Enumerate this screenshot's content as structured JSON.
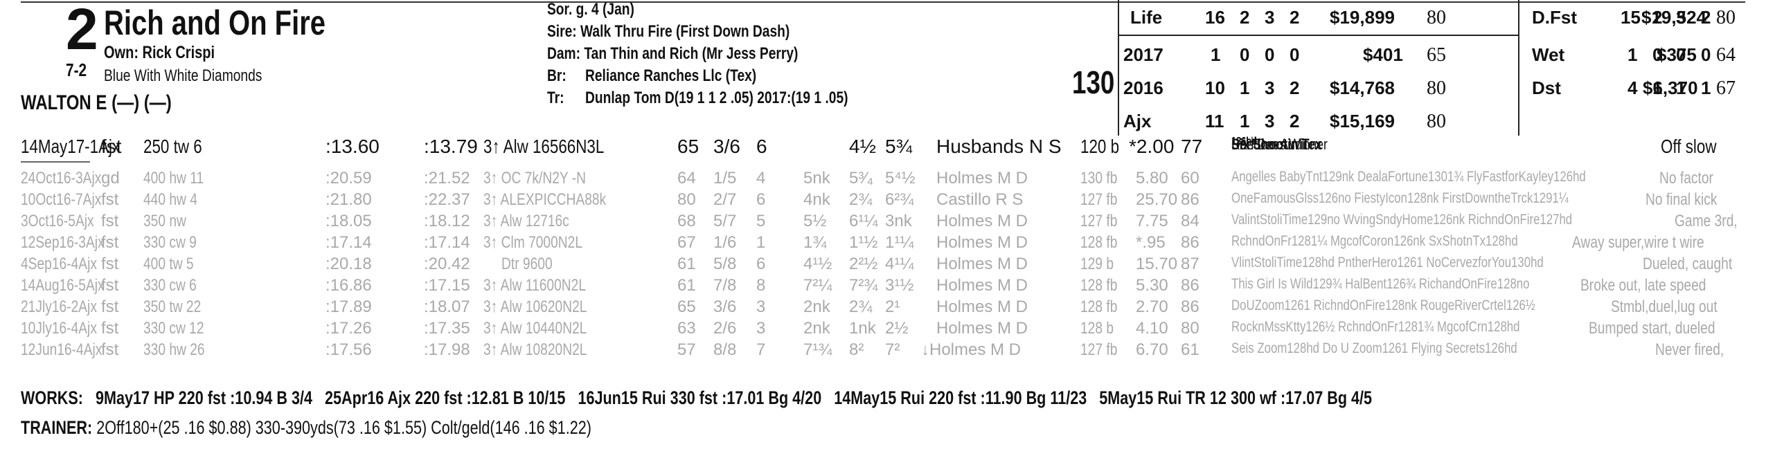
{
  "header": {
    "post_position": "2",
    "horse_name": "Rich and On Fire",
    "owner": "Own: Rick Crispi",
    "morning_line": "7-2",
    "silks": "Blue With White Diamonds",
    "jockey": "WALTON E (—) (—)",
    "sex_age": "Sor. g. 4 (Jan)",
    "sire": "Sire: Walk Thru Fire (First Down Dash)",
    "dam": "Dam: Tan Thin and Rich (Mr Jess Perry)",
    "breeder_label": "Br:",
    "breeder": "Reliance Ranches Llc (Tex)",
    "trainer_label": "Tr:",
    "trainer_line": "Dunlap Tom D(19 1 1 2 .05)  2017:(19 1 .05)",
    "weight": "130"
  },
  "stats": [
    {
      "label": "Life",
      "starts": "16",
      "w": "2",
      "p": "3",
      "s": "2",
      "earn": "$19,899",
      "spd": "80",
      "label2": "D.Fst",
      "starts2": "15",
      "w2": "2",
      "p2": "3",
      "s2": "2",
      "earn2": "$19,524",
      "spd2": "80"
    },
    {
      "label": "2017",
      "starts": "1",
      "w": "0",
      "p": "0",
      "s": "0",
      "earn": "$401",
      "spd": "65",
      "label2": "Wet",
      "starts2": "1",
      "w2": "0",
      "p2": "0",
      "s2": "0",
      "earn2": "$375",
      "spd2": "64"
    },
    {
      "label": "2016",
      "starts": "10",
      "w": "1",
      "p": "3",
      "s": "2",
      "earn": "$14,768",
      "spd": "80",
      "label2": "Dst",
      "starts2": "4",
      "w2": "1",
      "p2": "1",
      "s2": "1",
      "earn2": "$6,370",
      "spd2": "67"
    },
    {
      "label": "Ajx",
      "starts": "11",
      "w": "1",
      "p": "3",
      "s": "2",
      "earn": "$15,169",
      "spd": "80",
      "label2": "",
      "starts2": "",
      "w2": "",
      "p2": "",
      "s2": "",
      "earn2": "",
      "spd2": ""
    }
  ],
  "current_line": {
    "date": "14May17-1Ajx",
    "cond": "fst",
    "dist": "250 tw 6",
    "frac1": ":13.60",
    "frac2": ":13.79",
    "race": "3↑ Alw 16566N3L",
    "speed": "65",
    "pp": "3/6",
    "start": "6",
    "str": "4½",
    "fin": "5¾",
    "jockey": "Husbands N S",
    "wt": "120 b",
    "odds": "*2.00",
    "fig": "77",
    "top": "Six Shootin Tex",
    "tm1": "126hd",
    "second": " Random Audit",
    "tm2": "131nk",
    "third": " Dee Dees Winner",
    "tm3": "126hd",
    "comment": "Off slow"
  },
  "past_lines": [
    {
      "date": "24Oct16-3Ajx",
      "cond": "gd",
      "dist": "400 hw 11",
      "frac1": ":20.59",
      "frac2": ":21.52",
      "race": "3↑ OC 7k/N2Y -N",
      "speed": "64",
      "pp": "1/5",
      "start": "4",
      "call": "5nk",
      "str": "5³⁄₄",
      "fin": "5⁴½",
      "jockey": "Holmes M D",
      "wt": "130 fb",
      "odds": "5.80",
      "fig": "60",
      "finishers": "Angelles BabyTnt129nk DealaFortune1301¾ FlyFastforKayley126hd",
      "comment": "No factor"
    },
    {
      "date": "10Oct16-7Ajx",
      "cond": "fst",
      "dist": "440 hw 4",
      "frac1": ":21.80",
      "frac2": ":22.37",
      "race": "3↑ ALEXPICCHA88k",
      "speed": "80",
      "pp": "2/7",
      "start": "6",
      "call": "4nk",
      "str": "2¾",
      "fin": "6²¾",
      "jockey": "Castillo R S",
      "wt": "127 fb",
      "odds": "25.70",
      "fig": "86",
      "finishers": "OneFamousGlss126no FiestyIcon128nk FirstDowntheTrck1291¼",
      "comment": "No final kick"
    },
    {
      "date": "3Oct16-5Ajx",
      "cond": "fst",
      "dist": "350 nw",
      "frac1": ":18.05",
      "frac2": ":18.12",
      "race": "3↑ Alw 12716c",
      "speed": "68",
      "pp": "5/7",
      "start": "5",
      "call": "5½",
      "str": "6¹¼",
      "fin": "3nk",
      "jockey": "Holmes M D",
      "wt": "127 fb",
      "odds": "7.75",
      "fig": "84",
      "finishers": "ValintStoliTime129no WvingSndyHome126nk RichndOnFire127hd",
      "comment": "Game 3rd,"
    },
    {
      "date": "12Sep16-3Ajx",
      "cond": "fst",
      "dist": "330 cw 9",
      "frac1": ":17.14",
      "frac2": ":17.14",
      "race": "3↑ Clm 7000N2L",
      "speed": "67",
      "pp": "1/6",
      "start": "1",
      "call": "1¾",
      "str": "1¹½",
      "fin": "1¹¼",
      "jockey": "Holmes M D",
      "wt": "128 fb",
      "odds": "*.95",
      "fig": "86",
      "finishers": "RchndOnFr1281¼ MgcofCoron126nk SxShotnTx128hd",
      "comment": "Away super,wire t wire"
    },
    {
      "date": "4Sep16-4Ajx",
      "cond": "fst",
      "dist": "400 tw 5",
      "frac1": ":20.18",
      "frac2": ":20.42",
      "race": "Dtr 9600",
      "speed": "61",
      "pp": "5/8",
      "start": "6",
      "call": "4¹½",
      "str": "2²½",
      "fin": "4¹¼",
      "jockey": "Holmes M D",
      "wt": "129 b",
      "odds": "15.70",
      "fig": "87",
      "finishers": "VlintStoliTime128hd PntherHero1261 NoCervezforYou130hd",
      "comment": "Dueled, caught"
    },
    {
      "date": "14Aug16-5Ajx",
      "cond": "fst",
      "dist": "330 cw 6",
      "frac1": ":16.86",
      "frac2": ":17.15",
      "race": "3↑ Alw 11600N2L",
      "speed": "61",
      "pp": "7/8",
      "start": "8",
      "call": "7²¼",
      "str": "7²¾",
      "fin": "3¹½",
      "jockey": "Holmes M D",
      "wt": "128 fb",
      "odds": "5.30",
      "fig": "86",
      "finishers": "This Girl Is Wild129¾ HalBent126¾ RichandOnFire128no",
      "comment": "Broke out, late speed"
    },
    {
      "date": "21Jly16-2Ajx",
      "cond": "fst",
      "dist": "350 tw 22",
      "frac1": ":17.89",
      "frac2": ":18.07",
      "race": "3↑ Alw 10620N2L",
      "speed": "65",
      "pp": "3/6",
      "start": "3",
      "call": "2nk",
      "str": "2¾",
      "fin": "2¹",
      "jockey": "Holmes M D",
      "wt": "128 fb",
      "odds": "2.70",
      "fig": "86",
      "finishers": "DoUZoom1261 RichndOnFire128nk RougeRiverCrtel126½",
      "comment": "Stmbl,duel,lug out"
    },
    {
      "date": "10Jly16-4Ajx",
      "cond": "fst",
      "dist": "330 cw 12",
      "frac1": ":17.26",
      "frac2": ":17.35",
      "race": "3↑ Alw 10440N2L",
      "speed": "63",
      "pp": "2/6",
      "start": "3",
      "call": "2nk",
      "str": "1nk",
      "fin": "2½",
      "jockey": "Holmes M D",
      "wt": "128 b",
      "odds": "4.10",
      "fig": "80",
      "finishers": "RocknMssKtty126½ RchndOnFr1281¾ MgcofCrn128hd",
      "comment": "Bumped start, dueled"
    },
    {
      "date": "12Jun16-4Ajx",
      "cond": "fst",
      "dist": "330 hw 26",
      "frac1": ":17.56",
      "frac2": ":17.98",
      "race": "3↑ Alw 10820N2L",
      "speed": "57",
      "pp": "8/8",
      "start": "7",
      "call": "7¹¾",
      "str": "8²",
      "fin": "7²",
      "jockey": "↓Holmes M D",
      "wt": "127 fb",
      "odds": "6.70",
      "fig": "61",
      "finishers": "Seis Zoom128hd Do U Zoom1261 Flying Secrets126hd",
      "comment": "Never fired,"
    }
  ],
  "works": {
    "label": "WORKS:",
    "items": [
      "9May17 HP 220 fst :10.94 B 3/4",
      "25Apr16 Ajx 220 fst :12.81 B 10/15",
      "16Jun15 Rui 330 fst :17.01 Bg 4/20",
      "14May15 Rui 220 fst :11.90 Bg 11/23",
      "5May15 Rui TR 12 300 wf :17.07 Bg 4/5"
    ]
  },
  "trainer_stats": {
    "label": "TRAINER:",
    "text": "2Off180+(25 .16 $0.88) 330-390yds(73 .16 $1.55) Colt/geld(146 .16 $1.22)"
  }
}
